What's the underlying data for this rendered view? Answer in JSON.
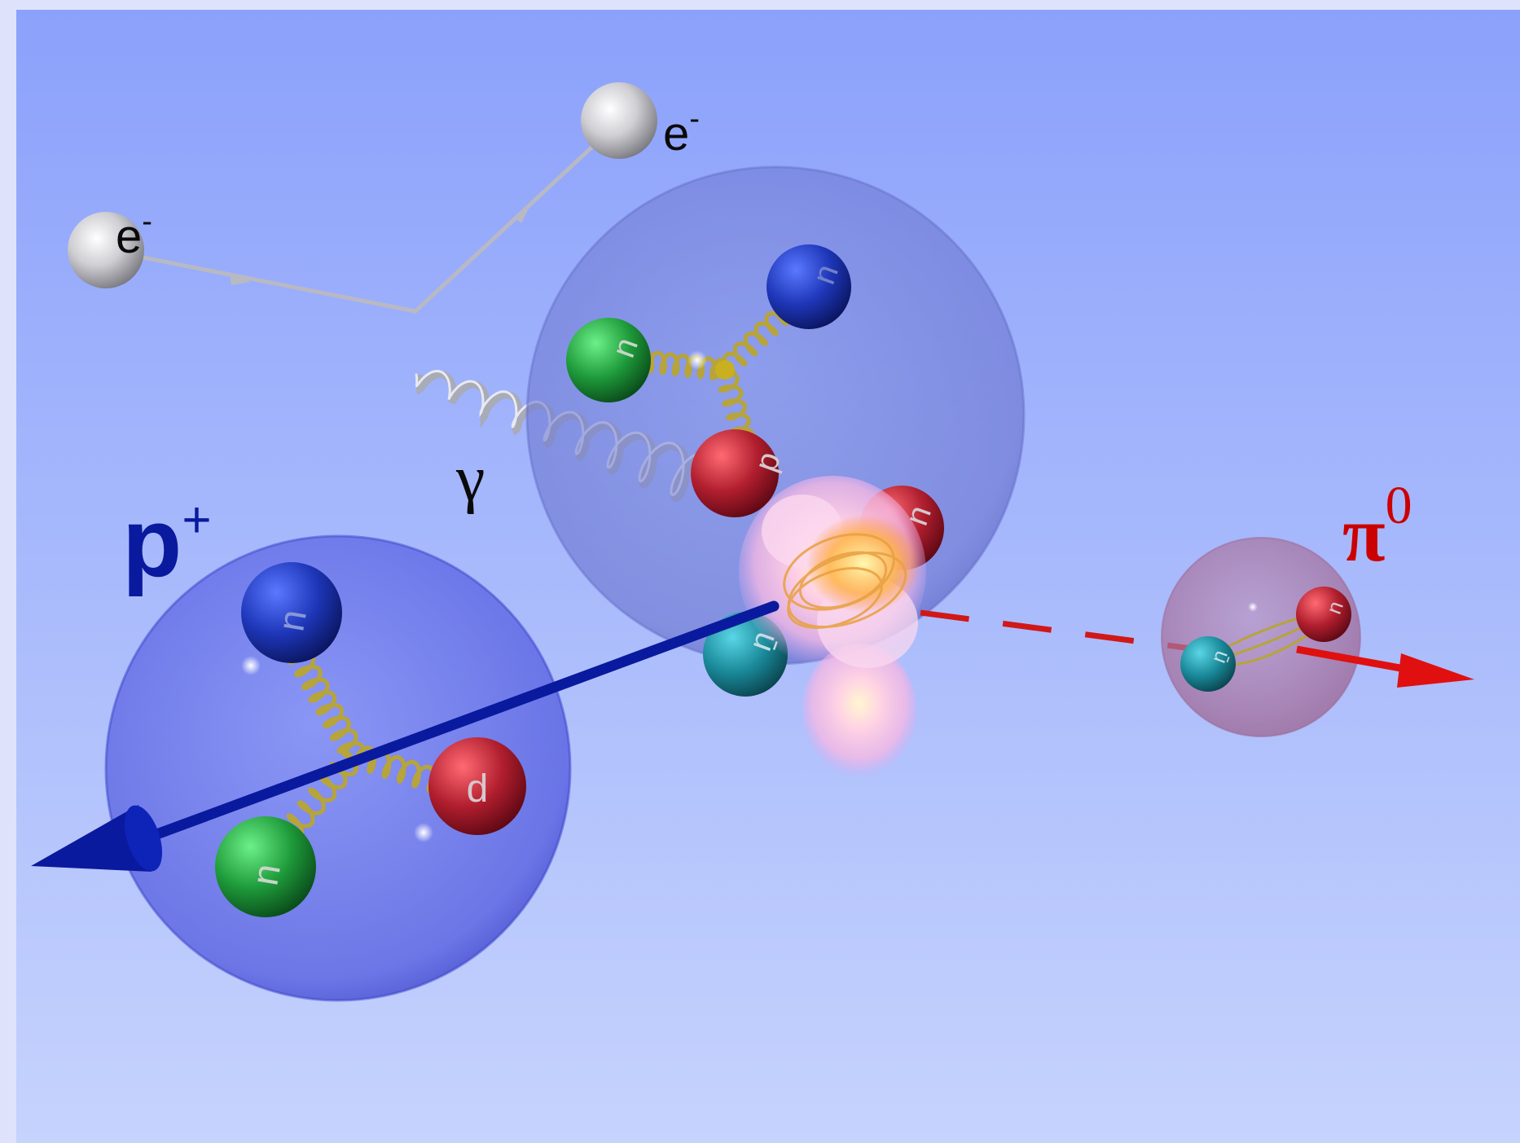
{
  "labels": {
    "electron_in": "e",
    "electron_in_sup": "-",
    "electron_out": "e",
    "electron_out_sup": "-",
    "photon": "γ",
    "proton": "p",
    "proton_sup": "+",
    "pion": "π",
    "pion_sup": "0"
  },
  "quarks": {
    "proton": [
      "u",
      "u",
      "d"
    ],
    "target": [
      "u",
      "u",
      "d",
      "u",
      "ū"
    ],
    "pion": [
      "u",
      "ū"
    ]
  },
  "colors": {
    "background_top": "#8ba1fb",
    "background_bottom": "#c6d3fd",
    "proton_sphere": "#4a55e0",
    "target_sphere": "#6a78d8",
    "pion_sphere": "#b07aa8",
    "proton_arrow": "#0a1a9e",
    "pion_arrow": "#e01010",
    "pion_label": "#cc0000",
    "proton_label": "#0a1a9e",
    "quark_red": "#b01e2e",
    "quark_green": "#1e9a3a",
    "quark_blue": "#1e36b8",
    "quark_cyan": "#1a8a9a",
    "gluon": "#b7a43a",
    "photon": "#a8abb8",
    "electron": "#d6d6da"
  }
}
